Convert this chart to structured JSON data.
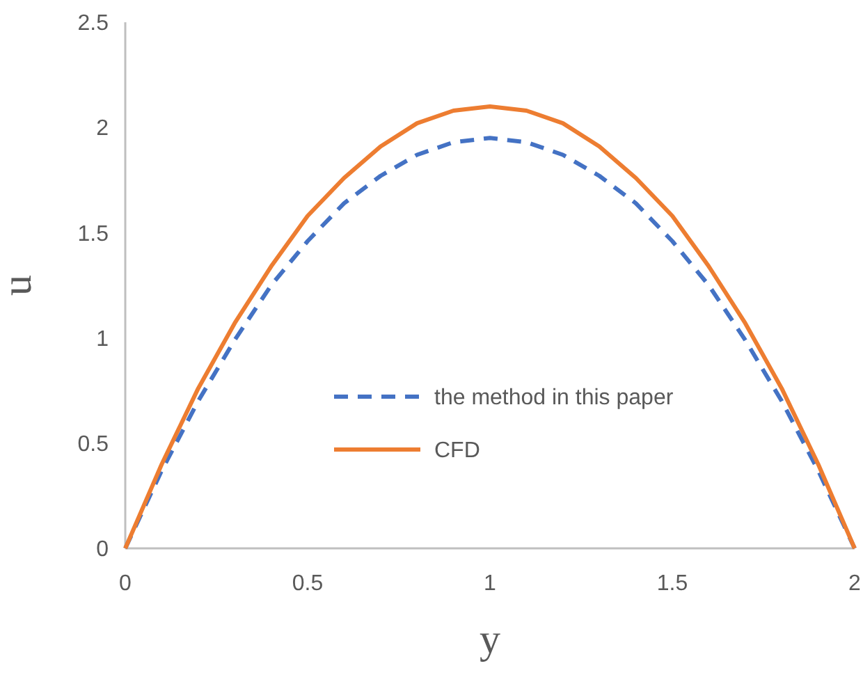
{
  "chart_data": {
    "type": "line",
    "xlabel": "y",
    "ylabel": "u",
    "x": [
      0,
      0.1,
      0.2,
      0.3,
      0.4,
      0.5,
      0.6,
      0.7,
      0.8,
      0.9,
      1,
      1.1,
      1.2,
      1.3,
      1.4,
      1.5,
      1.6,
      1.7,
      1.8,
      1.9,
      2
    ],
    "series": [
      {
        "name": "the method in this paper",
        "color": "#4472c4",
        "line_style": "dashed",
        "values": [
          0,
          0.37,
          0.7,
          0.99,
          1.25,
          1.46,
          1.64,
          1.77,
          1.87,
          1.93,
          1.95,
          1.93,
          1.87,
          1.77,
          1.64,
          1.46,
          1.25,
          0.99,
          0.7,
          0.37,
          0
        ]
      },
      {
        "name": "CFD",
        "color": "#ed7d31",
        "line_style": "solid",
        "values": [
          0,
          0.4,
          0.76,
          1.07,
          1.34,
          1.58,
          1.76,
          1.91,
          2.02,
          2.08,
          2.1,
          2.08,
          2.02,
          1.91,
          1.76,
          1.58,
          1.34,
          1.07,
          0.76,
          0.4,
          0
        ]
      }
    ],
    "xlim": [
      0,
      2
    ],
    "xticks": [
      0,
      0.5,
      1,
      1.5,
      2
    ],
    "ylim": [
      0,
      2.5
    ],
    "yticks": [
      0,
      0.5,
      1,
      1.5,
      2,
      2.5
    ],
    "grid": false,
    "legend": "center",
    "marker": "none"
  }
}
